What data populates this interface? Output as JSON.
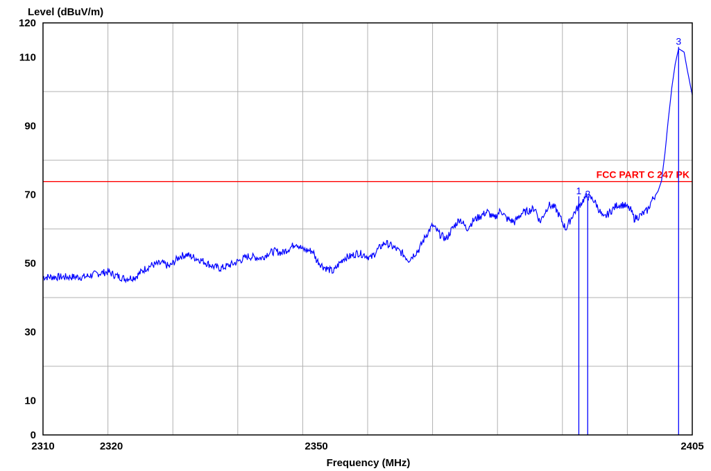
{
  "chart_data": {
    "type": "line",
    "ylabel": "Level (dBuV/m)",
    "xlabel": "Frequency (MHz)",
    "xlim": [
      2310,
      2405
    ],
    "ylim": [
      0,
      120
    ],
    "x_tick_labels": [
      {
        "value": 2310,
        "label": "2310"
      },
      {
        "value": 2320,
        "label": "2320"
      },
      {
        "value": 2350,
        "label": "2350"
      },
      {
        "value": 2405,
        "label": "2405"
      }
    ],
    "y_tick_labels": [
      {
        "value": 0,
        "label": "0"
      },
      {
        "value": 10,
        "label": "10"
      },
      {
        "value": 30,
        "label": "30"
      },
      {
        "value": 50,
        "label": "50"
      },
      {
        "value": 70,
        "label": "70"
      },
      {
        "value": 90,
        "label": "90"
      },
      {
        "value": 110,
        "label": "110"
      },
      {
        "value": 120,
        "label": "120"
      }
    ],
    "grid": true,
    "limit_line": {
      "label": "FCC PART C 247 PK",
      "value": 73.8,
      "color": "#ff0000"
    },
    "markers": [
      {
        "label": "1",
        "x": 2388.4,
        "y": 69.5
      },
      {
        "label": "2",
        "x": 2389.7,
        "y": 68.6
      },
      {
        "label": "3",
        "x": 2403.0,
        "y": 113.0
      }
    ],
    "series": [
      {
        "color": "#0000ff",
        "x": [
          2310,
          2312,
          2314,
          2316,
          2318,
          2319.5,
          2320.5,
          2322,
          2323.5,
          2325,
          2326,
          2327.5,
          2328.5,
          2330,
          2331,
          2333,
          2335,
          2336,
          2338,
          2339,
          2340,
          2342,
          2343,
          2344,
          2345,
          2346.5,
          2347,
          2348,
          2349.5,
          2350,
          2351,
          2352.5,
          2353,
          2354,
          2355,
          2356,
          2357,
          2358,
          2359,
          2360,
          2361,
          2362.5,
          2363.5,
          2365,
          2366,
          2367,
          2368,
          2369,
          2369.7,
          2371,
          2372,
          2373,
          2375,
          2376,
          2377,
          2377.8,
          2379,
          2380,
          2382,
          2382.7,
          2384,
          2385,
          2386,
          2386.5,
          2387.5,
          2388.5,
          2389.5,
          2390.5,
          2391,
          2392,
          2393,
          2394,
          2395,
          2396,
          2396.5,
          2397.5,
          2398.5,
          2399,
          2400,
          2400.5,
          2401,
          2401.5,
          2402,
          2402.5,
          2403,
          2403.8,
          2404.3,
          2405
        ],
        "y": [
          46,
          46,
          46,
          46,
          47,
          47.5,
          46.5,
          45.5,
          46,
          48.5,
          49.5,
          50,
          49,
          52,
          52.5,
          51,
          49,
          48.5,
          50,
          51,
          52,
          51.5,
          53,
          53.5,
          53,
          55,
          56,
          54,
          53.5,
          51,
          49,
          47.5,
          49,
          51.5,
          52,
          53,
          52.5,
          51.5,
          54,
          56,
          55,
          53,
          51,
          54,
          58,
          61,
          58.5,
          57,
          59.5,
          63,
          60,
          62.5,
          65,
          63,
          65.5,
          63,
          62,
          64.5,
          66,
          62,
          67,
          66,
          62,
          60,
          64,
          67,
          69.5,
          68.6,
          67,
          63,
          65,
          67,
          67,
          65.5,
          63,
          64,
          65.5,
          68,
          71,
          74,
          82,
          92,
          101,
          108,
          112.5,
          111.5,
          106,
          99
        ]
      }
    ]
  }
}
